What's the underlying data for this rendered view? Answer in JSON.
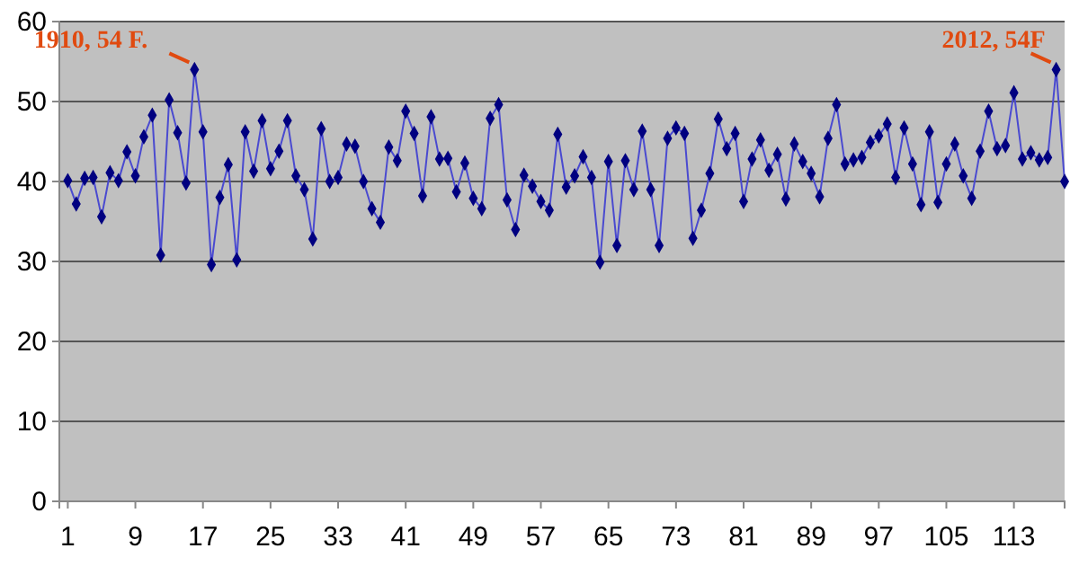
{
  "chart_data": {
    "type": "line",
    "marker": "diamond",
    "grid": "y",
    "x": [
      1,
      2,
      3,
      4,
      5,
      6,
      7,
      8,
      9,
      10,
      11,
      12,
      13,
      14,
      15,
      16,
      17,
      18,
      19,
      20,
      21,
      22,
      23,
      24,
      25,
      26,
      27,
      28,
      29,
      30,
      31,
      32,
      33,
      34,
      35,
      36,
      37,
      38,
      39,
      40,
      41,
      42,
      43,
      44,
      45,
      46,
      47,
      48,
      49,
      50,
      51,
      52,
      53,
      54,
      55,
      56,
      57,
      58,
      59,
      60,
      61,
      62,
      63,
      64,
      65,
      66,
      67,
      68,
      69,
      70,
      71,
      72,
      73,
      74,
      75,
      76,
      77,
      78,
      79,
      80,
      81,
      82,
      83,
      84,
      85,
      86,
      87,
      88,
      89,
      90,
      91,
      92,
      93,
      94,
      95,
      96,
      97,
      98,
      99,
      100,
      101,
      102,
      103,
      104,
      105,
      106,
      107,
      108,
      109,
      110,
      111,
      112,
      113,
      114,
      115,
      116,
      117,
      118,
      119
    ],
    "series": [
      {
        "color": "#000080",
        "values": [
          40.1,
          37.2,
          40.4,
          40.5,
          35.6,
          41.1,
          40.1,
          43.7,
          40.7,
          45.6,
          48.3,
          30.8,
          50.2,
          46.1,
          39.8,
          54,
          46.2,
          29.6,
          38,
          42.1,
          30.2,
          46.2,
          41.3,
          47.6,
          41.6,
          43.8,
          47.6,
          40.7,
          39,
          32.8,
          46.6,
          40,
          40.5,
          44.7,
          44.4,
          40,
          36.6,
          34.9,
          44.3,
          42.6,
          48.8,
          46,
          38.2,
          48.1,
          42.8,
          42.9,
          38.7,
          42.3,
          37.9,
          36.6,
          47.9,
          49.6,
          37.7,
          34,
          40.8,
          39.4,
          37.5,
          36.4,
          45.9,
          39.3,
          40.7,
          43.1,
          40.5,
          29.9,
          42.5,
          32,
          42.6,
          39,
          46.3,
          39,
          32,
          45.4,
          46.7,
          46,
          32.9,
          36.4,
          41,
          47.8,
          44.1,
          46,
          37.5,
          42.8,
          45.2,
          41.4,
          43.4,
          37.8,
          44.7,
          42.5,
          41,
          38.1,
          45.4,
          49.6,
          42.2,
          42.7,
          43,
          44.9,
          45.7,
          47.2,
          40.5,
          46.7,
          42.2,
          37.1,
          46.2,
          37.4,
          42.2,
          44.7,
          40.7,
          37.9,
          43.8,
          48.8,
          44.1,
          44.5,
          51.1,
          42.8,
          43.6,
          42.7,
          43,
          54,
          40
        ]
      }
    ],
    "xlim": [
      0,
      119
    ],
    "xticks": [
      1,
      9,
      17,
      25,
      33,
      41,
      49,
      57,
      65,
      73,
      81,
      89,
      97,
      105,
      113
    ],
    "ylim": [
      0,
      60
    ],
    "yticks": [
      0,
      10,
      20,
      30,
      40,
      50,
      60
    ],
    "annotations": [
      {
        "text": "1910, 54 F.",
        "x": 16,
        "y": 54
      },
      {
        "text": "2012, 54F",
        "x": 118,
        "y": 54
      }
    ]
  }
}
